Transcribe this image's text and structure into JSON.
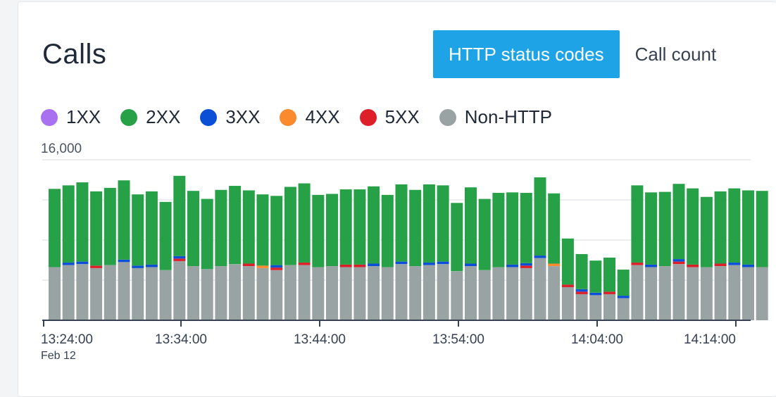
{
  "card": {
    "title": "Calls",
    "tabs": [
      {
        "label": "HTTP status codes",
        "active": true
      },
      {
        "label": "Call count",
        "active": false
      }
    ]
  },
  "legend": [
    {
      "label": "1XX",
      "color": "#a970f0"
    },
    {
      "label": "2XX",
      "color": "#27a147"
    },
    {
      "label": "3XX",
      "color": "#0b4fd6"
    },
    {
      "label": "4XX",
      "color": "#fb8a2e"
    },
    {
      "label": "5XX",
      "color": "#dd1f2a"
    },
    {
      "label": "Non-HTTP",
      "color": "#9aa3a3"
    }
  ],
  "chart_data": {
    "type": "bar",
    "stacked": true,
    "ylim": [
      0,
      16000
    ],
    "y_ticks": [
      "16,000"
    ],
    "x_ticks": [
      "13:24:00",
      "13:34:00",
      "13:44:00",
      "13:54:00",
      "14:04:00",
      "14:14:00"
    ],
    "x_sublabel": "Feb 12",
    "grid": true,
    "series": [
      {
        "name": "Non-HTTP",
        "values": [
          5300,
          5500,
          5600,
          5200,
          5500,
          5800,
          5200,
          5300,
          5000,
          5900,
          5400,
          5100,
          5400,
          5600,
          5400,
          5200,
          5000,
          5500,
          5500,
          5300,
          5400,
          5300,
          5300,
          5400,
          5300,
          5600,
          5400,
          5500,
          5600,
          4900,
          5400,
          5000,
          5300,
          5300,
          5200,
          6200,
          5400,
          3300,
          2600,
          2500,
          2600,
          2200,
          5500,
          5300,
          5400,
          5600,
          5300,
          5300,
          5400,
          5500,
          5300,
          5300
        ]
      },
      {
        "name": "5XX",
        "values": [
          0,
          0,
          0,
          250,
          0,
          0,
          0,
          0,
          0,
          250,
          0,
          0,
          0,
          0,
          250,
          0,
          250,
          0,
          250,
          0,
          0,
          250,
          250,
          0,
          0,
          0,
          0,
          0,
          0,
          0,
          0,
          0,
          0,
          0,
          250,
          0,
          0,
          250,
          250,
          0,
          250,
          0,
          250,
          0,
          0,
          250,
          250,
          0,
          250,
          0,
          0,
          0
        ]
      },
      {
        "name": "4XX",
        "values": [
          0,
          0,
          0,
          0,
          0,
          0,
          0,
          0,
          0,
          0,
          0,
          0,
          0,
          0,
          0,
          250,
          0,
          0,
          0,
          0,
          0,
          0,
          0,
          0,
          0,
          0,
          0,
          0,
          0,
          0,
          0,
          0,
          0,
          0,
          0,
          0,
          250,
          0,
          0,
          0,
          0,
          0,
          0,
          0,
          0,
          0,
          0,
          0,
          0,
          0,
          0,
          0
        ]
      },
      {
        "name": "3XX",
        "values": [
          0,
          250,
          250,
          0,
          0,
          250,
          250,
          250,
          0,
          250,
          0,
          0,
          0,
          0,
          0,
          0,
          250,
          0,
          0,
          0,
          0,
          0,
          0,
          250,
          0,
          250,
          0,
          250,
          250,
          0,
          250,
          0,
          0,
          250,
          250,
          250,
          0,
          0,
          250,
          250,
          0,
          250,
          0,
          250,
          0,
          250,
          0,
          0,
          0,
          250,
          250,
          0
        ]
      },
      {
        "name": "2XX",
        "values": [
          7800,
          7700,
          7900,
          7400,
          7700,
          7900,
          7100,
          7300,
          6800,
          8000,
          7500,
          7000,
          7600,
          7800,
          7300,
          7100,
          6900,
          7800,
          7900,
          7200,
          7200,
          7500,
          7500,
          7700,
          7200,
          7700,
          7600,
          7800,
          7600,
          6800,
          7600,
          7100,
          7400,
          7200,
          7000,
          7800,
          7000,
          4600,
          3500,
          3200,
          3400,
          2600,
          7700,
          7200,
          7400,
          7500,
          7600,
          7000,
          7200,
          7400,
          7400,
          7600
        ]
      },
      {
        "name": "1XX",
        "values": [
          0,
          0,
          0,
          0,
          0,
          0,
          0,
          0,
          0,
          0,
          0,
          0,
          0,
          0,
          0,
          0,
          0,
          0,
          0,
          0,
          0,
          0,
          0,
          0,
          0,
          0,
          0,
          0,
          0,
          0,
          0,
          0,
          0,
          0,
          0,
          0,
          0,
          0,
          0,
          0,
          0,
          0,
          0,
          0,
          0,
          0,
          0,
          0,
          0,
          0,
          0,
          0
        ]
      }
    ]
  }
}
